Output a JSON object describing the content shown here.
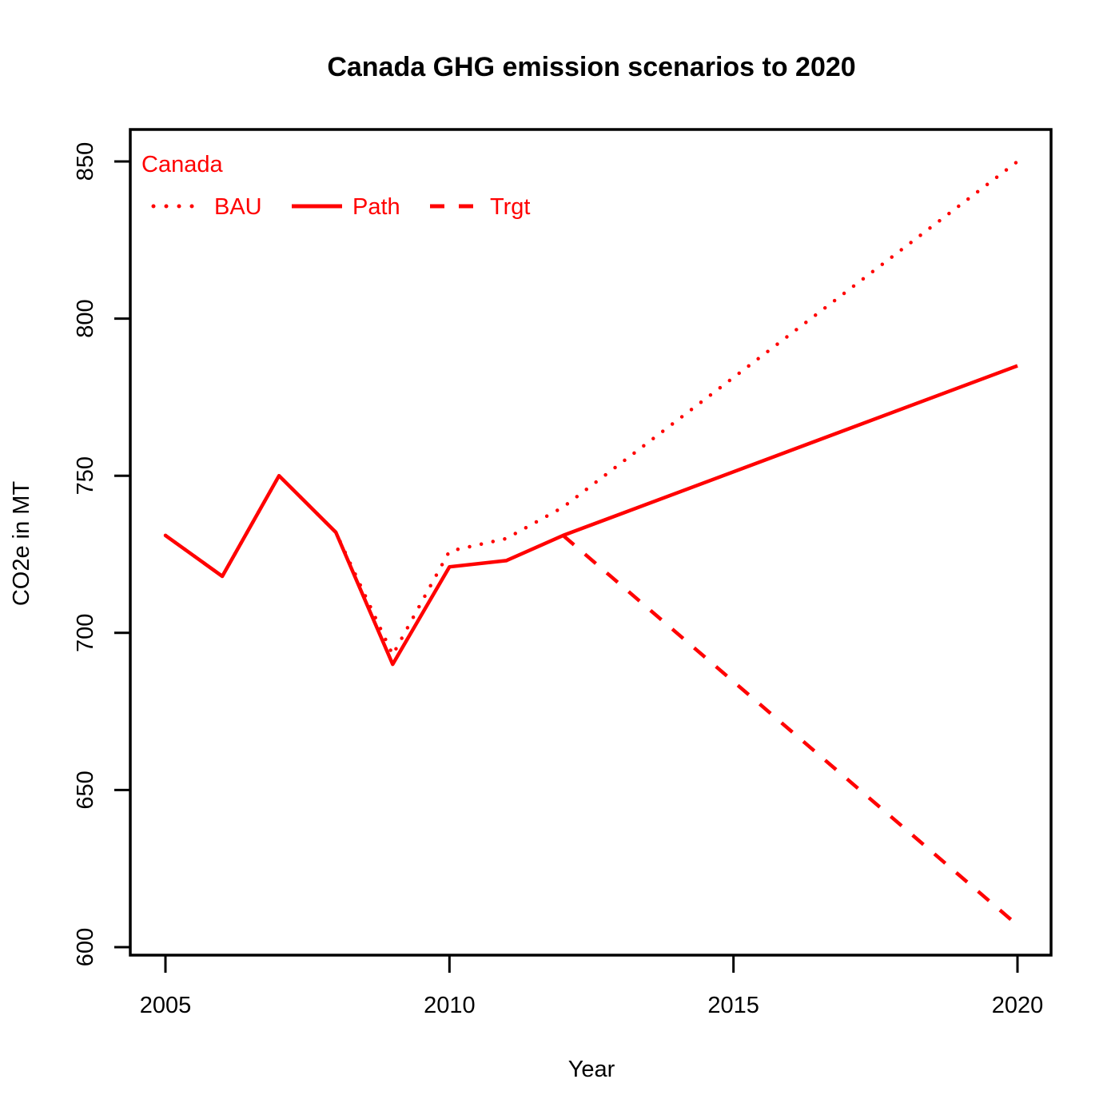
{
  "chart_data": {
    "type": "line",
    "title": "Canada GHG emission scenarios to 2020",
    "xlabel": "Year",
    "ylabel": "CO2e in MT",
    "xlim": [
      2004.6,
      2021.2
    ],
    "ylim": [
      597,
      860
    ],
    "x_ticks": [
      2005,
      2010,
      2015,
      2020
    ],
    "y_ticks": [
      600,
      650,
      700,
      750,
      800,
      850
    ],
    "grid": false,
    "legend": {
      "title": "Canada",
      "placement": "top-left",
      "horizontal": true,
      "entries": [
        "BAU",
        "Path",
        "Trgt"
      ]
    },
    "color": "#ff0000",
    "series": [
      {
        "name": "BAU",
        "style": "dotted",
        "x": [
          2005,
          2006,
          2007,
          2008,
          2009,
          2010,
          2011,
          2012,
          2020
        ],
        "values": [
          731,
          718,
          750,
          732,
          693,
          726,
          730,
          740,
          850
        ]
      },
      {
        "name": "Path",
        "style": "solid",
        "x": [
          2005,
          2006,
          2007,
          2008,
          2009,
          2010,
          2011,
          2012,
          2020
        ],
        "values": [
          731,
          718,
          750,
          732,
          690,
          721,
          723,
          731,
          785
        ]
      },
      {
        "name": "Trgt",
        "style": "dashed",
        "x": [
          2012,
          2020
        ],
        "values": [
          731,
          607
        ]
      }
    ]
  }
}
